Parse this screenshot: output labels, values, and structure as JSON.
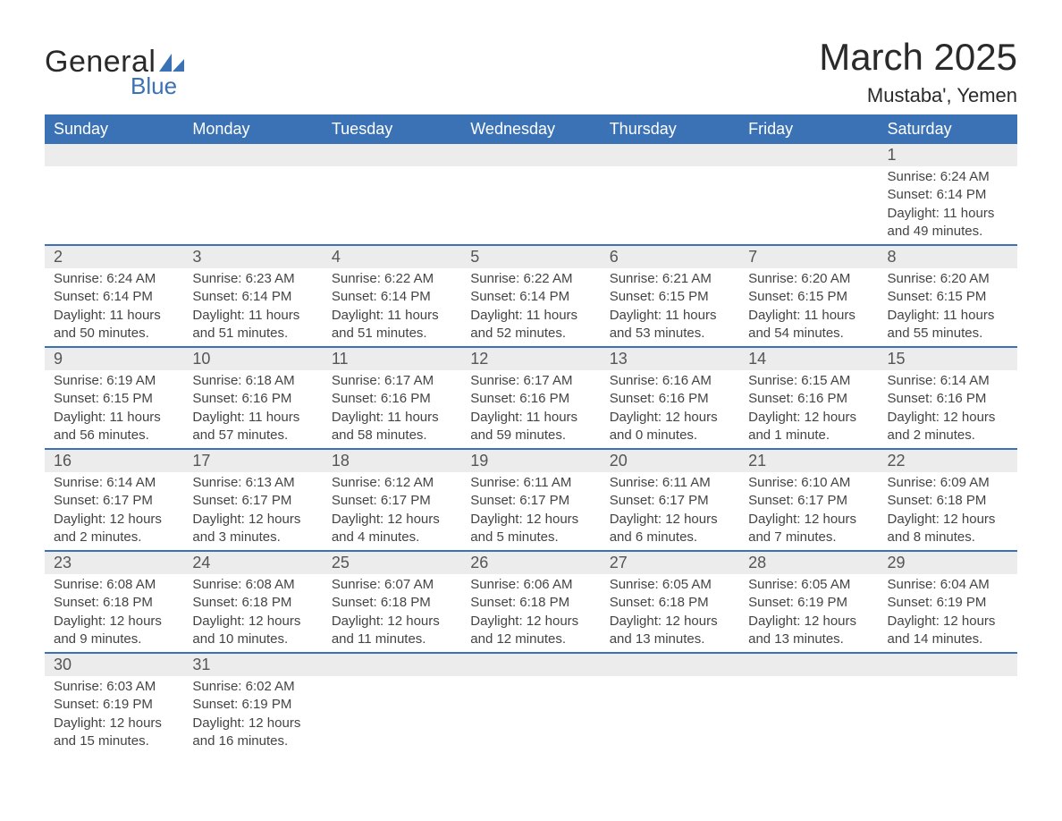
{
  "brand": {
    "line1": "General",
    "line2": "Blue",
    "accent_color": "#3b72b5"
  },
  "title": "March 2025",
  "location": "Mustaba', Yemen",
  "columns": [
    "Sunday",
    "Monday",
    "Tuesday",
    "Wednesday",
    "Thursday",
    "Friday",
    "Saturday"
  ],
  "colors": {
    "header_bg": "#3b72b5",
    "header_text": "#ffffff",
    "daynum_bg": "#ececec",
    "row_divider": "#3b72b5",
    "text": "#444444"
  },
  "fonts": {
    "title_size": 42,
    "location_size": 22,
    "header_size": 18,
    "daynum_size": 18,
    "body_size": 15
  },
  "weeks": [
    [
      null,
      null,
      null,
      null,
      null,
      null,
      {
        "d": "1",
        "sr": "Sunrise: 6:24 AM",
        "ss": "Sunset: 6:14 PM",
        "dl": "Daylight: 11 hours and 49 minutes."
      }
    ],
    [
      {
        "d": "2",
        "sr": "Sunrise: 6:24 AM",
        "ss": "Sunset: 6:14 PM",
        "dl": "Daylight: 11 hours and 50 minutes."
      },
      {
        "d": "3",
        "sr": "Sunrise: 6:23 AM",
        "ss": "Sunset: 6:14 PM",
        "dl": "Daylight: 11 hours and 51 minutes."
      },
      {
        "d": "4",
        "sr": "Sunrise: 6:22 AM",
        "ss": "Sunset: 6:14 PM",
        "dl": "Daylight: 11 hours and 51 minutes."
      },
      {
        "d": "5",
        "sr": "Sunrise: 6:22 AM",
        "ss": "Sunset: 6:14 PM",
        "dl": "Daylight: 11 hours and 52 minutes."
      },
      {
        "d": "6",
        "sr": "Sunrise: 6:21 AM",
        "ss": "Sunset: 6:15 PM",
        "dl": "Daylight: 11 hours and 53 minutes."
      },
      {
        "d": "7",
        "sr": "Sunrise: 6:20 AM",
        "ss": "Sunset: 6:15 PM",
        "dl": "Daylight: 11 hours and 54 minutes."
      },
      {
        "d": "8",
        "sr": "Sunrise: 6:20 AM",
        "ss": "Sunset: 6:15 PM",
        "dl": "Daylight: 11 hours and 55 minutes."
      }
    ],
    [
      {
        "d": "9",
        "sr": "Sunrise: 6:19 AM",
        "ss": "Sunset: 6:15 PM",
        "dl": "Daylight: 11 hours and 56 minutes."
      },
      {
        "d": "10",
        "sr": "Sunrise: 6:18 AM",
        "ss": "Sunset: 6:16 PM",
        "dl": "Daylight: 11 hours and 57 minutes."
      },
      {
        "d": "11",
        "sr": "Sunrise: 6:17 AM",
        "ss": "Sunset: 6:16 PM",
        "dl": "Daylight: 11 hours and 58 minutes."
      },
      {
        "d": "12",
        "sr": "Sunrise: 6:17 AM",
        "ss": "Sunset: 6:16 PM",
        "dl": "Daylight: 11 hours and 59 minutes."
      },
      {
        "d": "13",
        "sr": "Sunrise: 6:16 AM",
        "ss": "Sunset: 6:16 PM",
        "dl": "Daylight: 12 hours and 0 minutes."
      },
      {
        "d": "14",
        "sr": "Sunrise: 6:15 AM",
        "ss": "Sunset: 6:16 PM",
        "dl": "Daylight: 12 hours and 1 minute."
      },
      {
        "d": "15",
        "sr": "Sunrise: 6:14 AM",
        "ss": "Sunset: 6:16 PM",
        "dl": "Daylight: 12 hours and 2 minutes."
      }
    ],
    [
      {
        "d": "16",
        "sr": "Sunrise: 6:14 AM",
        "ss": "Sunset: 6:17 PM",
        "dl": "Daylight: 12 hours and 2 minutes."
      },
      {
        "d": "17",
        "sr": "Sunrise: 6:13 AM",
        "ss": "Sunset: 6:17 PM",
        "dl": "Daylight: 12 hours and 3 minutes."
      },
      {
        "d": "18",
        "sr": "Sunrise: 6:12 AM",
        "ss": "Sunset: 6:17 PM",
        "dl": "Daylight: 12 hours and 4 minutes."
      },
      {
        "d": "19",
        "sr": "Sunrise: 6:11 AM",
        "ss": "Sunset: 6:17 PM",
        "dl": "Daylight: 12 hours and 5 minutes."
      },
      {
        "d": "20",
        "sr": "Sunrise: 6:11 AM",
        "ss": "Sunset: 6:17 PM",
        "dl": "Daylight: 12 hours and 6 minutes."
      },
      {
        "d": "21",
        "sr": "Sunrise: 6:10 AM",
        "ss": "Sunset: 6:17 PM",
        "dl": "Daylight: 12 hours and 7 minutes."
      },
      {
        "d": "22",
        "sr": "Sunrise: 6:09 AM",
        "ss": "Sunset: 6:18 PM",
        "dl": "Daylight: 12 hours and 8 minutes."
      }
    ],
    [
      {
        "d": "23",
        "sr": "Sunrise: 6:08 AM",
        "ss": "Sunset: 6:18 PM",
        "dl": "Daylight: 12 hours and 9 minutes."
      },
      {
        "d": "24",
        "sr": "Sunrise: 6:08 AM",
        "ss": "Sunset: 6:18 PM",
        "dl": "Daylight: 12 hours and 10 minutes."
      },
      {
        "d": "25",
        "sr": "Sunrise: 6:07 AM",
        "ss": "Sunset: 6:18 PM",
        "dl": "Daylight: 12 hours and 11 minutes."
      },
      {
        "d": "26",
        "sr": "Sunrise: 6:06 AM",
        "ss": "Sunset: 6:18 PM",
        "dl": "Daylight: 12 hours and 12 minutes."
      },
      {
        "d": "27",
        "sr": "Sunrise: 6:05 AM",
        "ss": "Sunset: 6:18 PM",
        "dl": "Daylight: 12 hours and 13 minutes."
      },
      {
        "d": "28",
        "sr": "Sunrise: 6:05 AM",
        "ss": "Sunset: 6:19 PM",
        "dl": "Daylight: 12 hours and 13 minutes."
      },
      {
        "d": "29",
        "sr": "Sunrise: 6:04 AM",
        "ss": "Sunset: 6:19 PM",
        "dl": "Daylight: 12 hours and 14 minutes."
      }
    ],
    [
      {
        "d": "30",
        "sr": "Sunrise: 6:03 AM",
        "ss": "Sunset: 6:19 PM",
        "dl": "Daylight: 12 hours and 15 minutes."
      },
      {
        "d": "31",
        "sr": "Sunrise: 6:02 AM",
        "ss": "Sunset: 6:19 PM",
        "dl": "Daylight: 12 hours and 16 minutes."
      },
      null,
      null,
      null,
      null,
      null
    ]
  ]
}
